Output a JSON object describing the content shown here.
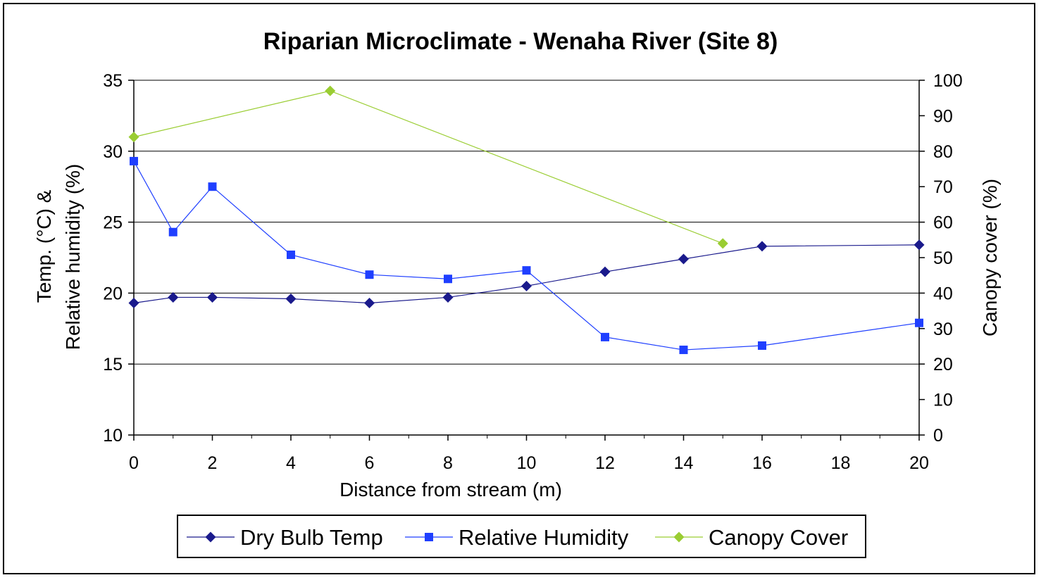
{
  "chart_data": {
    "type": "line",
    "title": "Riparian Microclimate - Wenaha River (Site 8)",
    "xlabel": "Distance from stream (m)",
    "ylabel_line1": "Temp. (°C) &",
    "ylabel_line2": "Relative humidity (%)",
    "y2label": "Canopy cover (%)",
    "xlim": [
      0,
      20
    ],
    "ylim": [
      10,
      35
    ],
    "y2lim": [
      0,
      100
    ],
    "x_ticks": [
      "0",
      "2",
      "4",
      "6",
      "8",
      "10",
      "12",
      "14",
      "16",
      "18",
      "20"
    ],
    "y_ticks": [
      "10",
      "15",
      "20",
      "25",
      "30",
      "35"
    ],
    "y2_ticks": [
      "0",
      "10",
      "20",
      "30",
      "40",
      "50",
      "60",
      "70",
      "80",
      "90",
      "100"
    ],
    "grid": "horizontal",
    "legend_position": "bottom",
    "series": [
      {
        "name": "Dry Bulb Temp",
        "axis": "left",
        "color": "#1a1a8c",
        "marker": "diamond",
        "x": [
          0,
          1,
          2,
          4,
          6,
          8,
          10,
          12,
          14,
          16,
          20
        ],
        "y": [
          19.3,
          19.7,
          19.7,
          19.6,
          19.3,
          19.7,
          20.5,
          21.5,
          22.4,
          23.3,
          23.4
        ]
      },
      {
        "name": "Relative Humidity",
        "axis": "left",
        "color": "#1f3fff",
        "marker": "square",
        "x": [
          0,
          1,
          2,
          4,
          6,
          8,
          10,
          12,
          14,
          16,
          20
        ],
        "y": [
          29.3,
          24.3,
          27.5,
          22.7,
          21.3,
          21.0,
          21.6,
          16.9,
          16.0,
          16.3,
          17.9
        ]
      },
      {
        "name": "Canopy Cover",
        "axis": "right",
        "color": "#9acd32",
        "marker": "diamond",
        "x": [
          0,
          5,
          15
        ],
        "y": [
          84,
          97,
          54
        ]
      }
    ]
  }
}
